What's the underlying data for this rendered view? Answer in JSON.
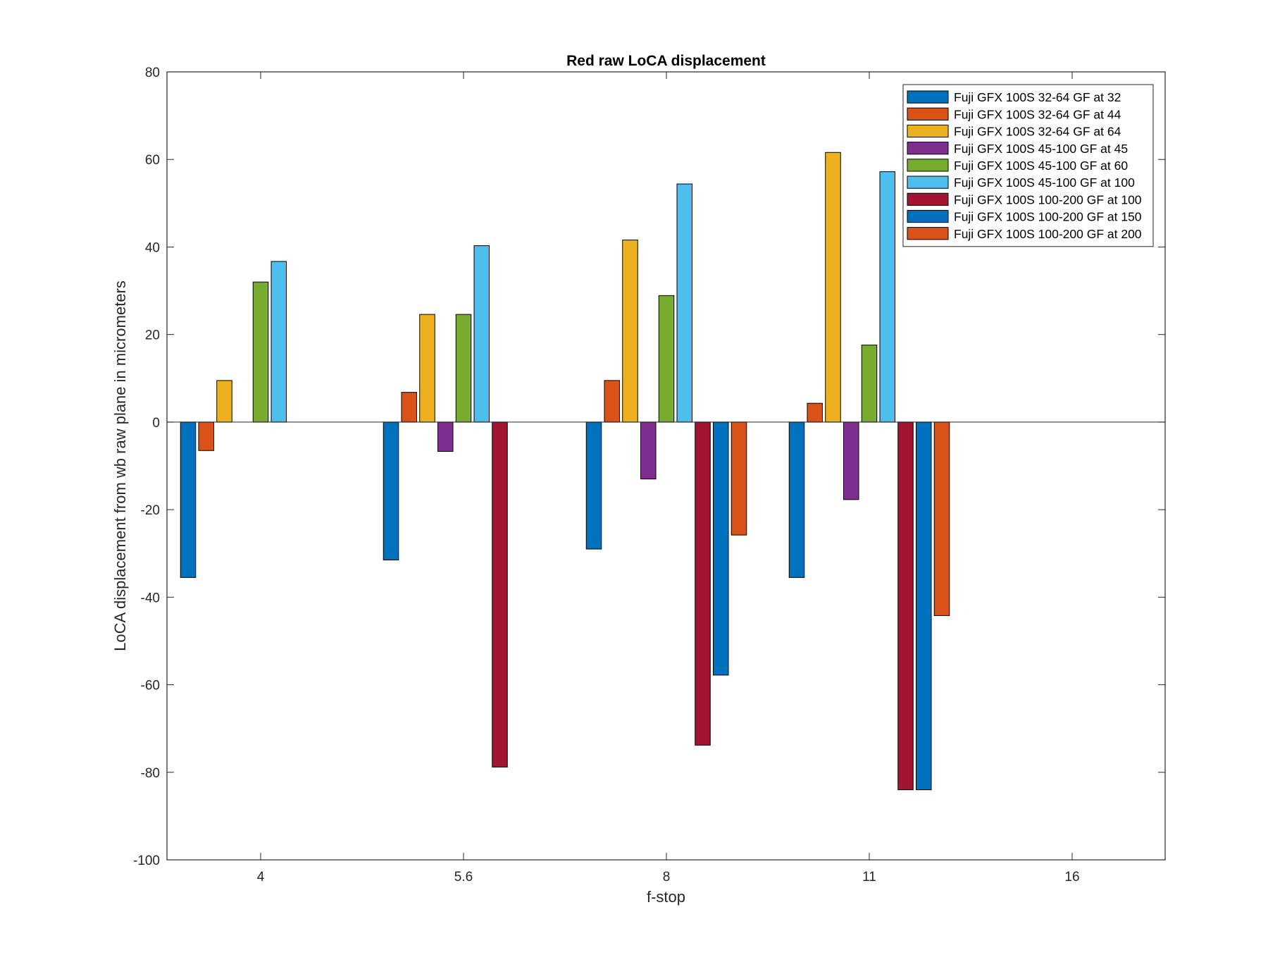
{
  "chart_data": {
    "type": "bar",
    "title": "Red raw  LoCA displacement",
    "xlabel": "f-stop",
    "ylabel": "LoCA displacement from wb raw plane in micrometers",
    "categories": [
      "4",
      "5.6",
      "8",
      "11",
      "16"
    ],
    "ylim": [
      -100,
      80
    ],
    "yticks": [
      "-100",
      "-80",
      "-60",
      "-40",
      "-20",
      "0",
      "20",
      "40",
      "60",
      "80"
    ],
    "grid": false,
    "legend_position": "top-right",
    "series": [
      {
        "name": "Fuji GFX 100S 32-64 GF at 32",
        "color": "#0072BD",
        "values": [
          -35.5,
          -31.5,
          -29,
          -35.5,
          0
        ]
      },
      {
        "name": "Fuji GFX 100S 32-64 GF at 44",
        "color": "#D95319",
        "values": [
          -6.5,
          6.8,
          9.5,
          4.3,
          0
        ]
      },
      {
        "name": "Fuji GFX 100S 32-64 GF at 64",
        "color": "#EDB120",
        "values": [
          9.5,
          24.6,
          41.6,
          61.6,
          0
        ]
      },
      {
        "name": "Fuji GFX 100S 45-100 GF at 45",
        "color": "#7E2F8E",
        "values": [
          0,
          -6.7,
          -13,
          -17.7,
          0
        ]
      },
      {
        "name": "Fuji GFX 100S 45-100 GF at 60",
        "color": "#77AC30",
        "values": [
          32,
          24.6,
          28.9,
          17.6,
          0
        ]
      },
      {
        "name": "Fuji GFX 100S 45-100 GF at 100",
        "color": "#4DBEEE",
        "values": [
          36.7,
          40.3,
          54.4,
          57.2,
          0
        ]
      },
      {
        "name": "Fuji GFX 100S 100-200 GF at 100",
        "color": "#A2142F",
        "values": [
          0,
          -78.8,
          -73.8,
          -84,
          0
        ]
      },
      {
        "name": "Fuji GFX 100S 100-200 GF at 150",
        "color": "#0072BD",
        "values": [
          0,
          0,
          -57.8,
          -84,
          0
        ]
      },
      {
        "name": "Fuji GFX 100S 100-200 GF at 200",
        "color": "#D95319",
        "values": [
          0,
          0,
          -25.8,
          -44.2,
          0
        ]
      }
    ]
  }
}
